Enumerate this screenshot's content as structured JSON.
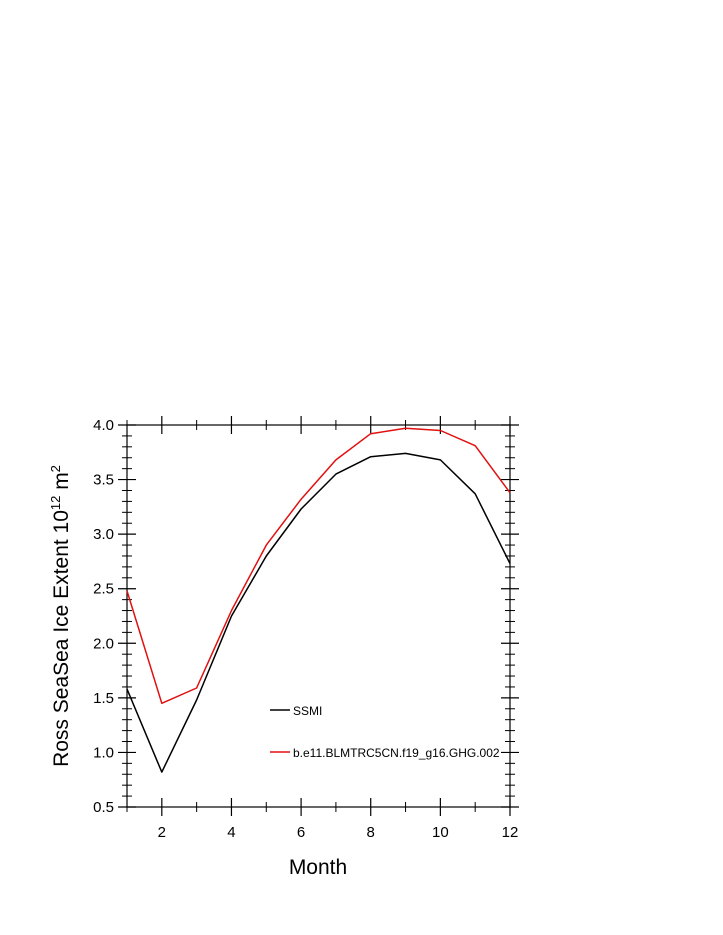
{
  "chart_data": {
    "type": "line",
    "title": "",
    "xlabel": "Month",
    "ylabel_prefix": "Ross SeaSea Ice Extent 10",
    "ylabel_exp1": "12",
    "ylabel_unit": " m",
    "ylabel_exp2": "2",
    "xlim": [
      1,
      12
    ],
    "ylim": [
      0.5,
      4.0
    ],
    "x_ticks": [
      2,
      4,
      6,
      8,
      10,
      12
    ],
    "y_ticks": [
      0.5,
      1.0,
      1.5,
      2.0,
      2.5,
      3.0,
      3.5,
      4.0
    ],
    "y_tick_labels": [
      "0.5",
      "1.0",
      "1.5",
      "2.0",
      "2.5",
      "3.0",
      "3.5",
      "4.0"
    ],
    "x": [
      1,
      2,
      3,
      4,
      5,
      6,
      7,
      8,
      9,
      10,
      11,
      12
    ],
    "legend_position": "inside-lower-center",
    "series": [
      {
        "name": "SSMI",
        "color": "#000000",
        "values": [
          1.58,
          0.82,
          1.48,
          2.25,
          2.8,
          3.23,
          3.55,
          3.71,
          3.74,
          3.68,
          3.37,
          2.73
        ]
      },
      {
        "name": "b.e11.BLMTRC5CN.f19_g16.GHG.002",
        "color": "#e01010",
        "values": [
          2.48,
          1.45,
          1.59,
          2.3,
          2.9,
          3.32,
          3.68,
          3.92,
          3.97,
          3.95,
          3.81,
          3.38
        ]
      }
    ]
  }
}
